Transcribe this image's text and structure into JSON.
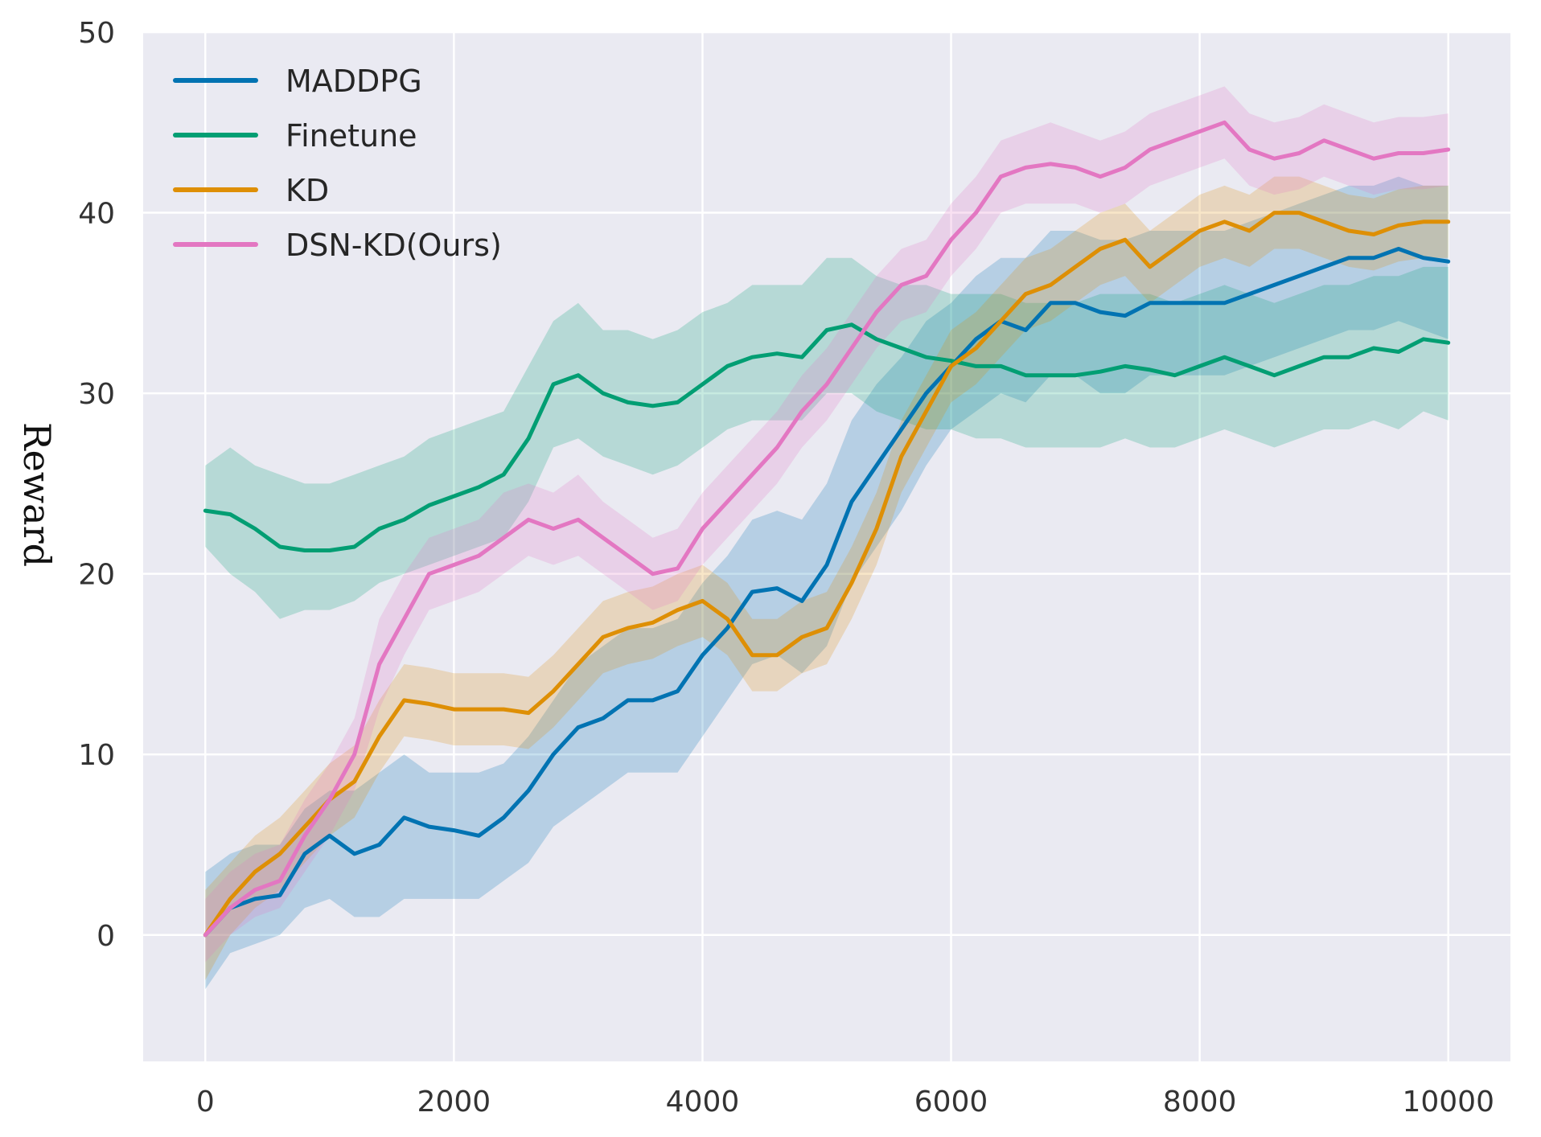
{
  "chart_data": {
    "type": "line",
    "title": "",
    "xlabel": "",
    "ylabel": "Reward",
    "xlim": [
      -500,
      10500
    ],
    "ylim": [
      -7,
      50
    ],
    "xticks": [
      0,
      2000,
      4000,
      6000,
      8000,
      10000
    ],
    "yticks": [
      0,
      10,
      20,
      30,
      40,
      50
    ],
    "grid": true,
    "legend_position": "top-left",
    "colors": {
      "plot_background": "#eaeaf2",
      "grid": "#ffffff"
    },
    "series": [
      {
        "name": "MADDPG",
        "color": "#0173b2",
        "x": [
          0,
          200,
          400,
          600,
          800,
          1000,
          1200,
          1400,
          1600,
          1800,
          2000,
          2200,
          2400,
          2600,
          2800,
          3000,
          3200,
          3400,
          3600,
          3800,
          4000,
          4200,
          4400,
          4600,
          4800,
          5000,
          5200,
          5400,
          5600,
          5800,
          6000,
          6200,
          6400,
          6600,
          6800,
          7000,
          7200,
          7400,
          7600,
          7800,
          8000,
          8200,
          8400,
          8600,
          8800,
          9000,
          9200,
          9400,
          9600,
          9800,
          10000
        ],
        "values": [
          0,
          1.5,
          2,
          2.2,
          4.5,
          5.5,
          4.5,
          5,
          6.5,
          6,
          5.8,
          5.5,
          6.5,
          8,
          10,
          11.5,
          12,
          13,
          13,
          13.5,
          15.5,
          17,
          19,
          19.2,
          18.5,
          20.5,
          24,
          26,
          28,
          30,
          31.5,
          33,
          34,
          33.5,
          35,
          35,
          34.5,
          34.3,
          35,
          35,
          35,
          35,
          35.5,
          36,
          36.5,
          37,
          37.5,
          37.5,
          38,
          37.5,
          37.3
        ],
        "band": [
          [
            -3,
            3.5
          ],
          [
            -1,
            4.5
          ],
          [
            -0.5,
            5
          ],
          [
            0,
            5
          ],
          [
            1.5,
            7
          ],
          [
            2,
            8
          ],
          [
            1,
            8
          ],
          [
            1,
            9
          ],
          [
            2,
            10
          ],
          [
            2,
            9
          ],
          [
            2,
            9
          ],
          [
            2,
            9
          ],
          [
            3,
            9.5
          ],
          [
            4,
            11
          ],
          [
            6,
            13
          ],
          [
            7,
            15
          ],
          [
            8,
            16
          ],
          [
            9,
            17
          ],
          [
            9,
            17
          ],
          [
            9,
            17.5
          ],
          [
            11,
            19.5
          ],
          [
            13,
            21
          ],
          [
            15,
            23
          ],
          [
            15.5,
            23.5
          ],
          [
            14.5,
            23
          ],
          [
            16,
            25
          ],
          [
            19.5,
            28.5
          ],
          [
            21.5,
            30.5
          ],
          [
            23.5,
            32
          ],
          [
            26,
            34
          ],
          [
            28,
            35
          ],
          [
            29,
            36.5
          ],
          [
            30,
            37.5
          ],
          [
            29.5,
            37.5
          ],
          [
            31,
            39
          ],
          [
            31,
            39
          ],
          [
            30,
            38.5
          ],
          [
            30,
            38.5
          ],
          [
            31,
            39
          ],
          [
            31,
            39
          ],
          [
            31,
            39
          ],
          [
            31,
            39
          ],
          [
            31.5,
            39.5
          ],
          [
            32,
            40
          ],
          [
            32.5,
            40.5
          ],
          [
            33,
            41
          ],
          [
            33.5,
            41.5
          ],
          [
            33.5,
            41.5
          ],
          [
            34,
            42
          ],
          [
            33.5,
            41.5
          ],
          [
            33,
            41.5
          ]
        ]
      },
      {
        "name": "Finetune",
        "color": "#029e73",
        "x": [
          0,
          200,
          400,
          600,
          800,
          1000,
          1200,
          1400,
          1600,
          1800,
          2000,
          2200,
          2400,
          2600,
          2800,
          3000,
          3200,
          3400,
          3600,
          3800,
          4000,
          4200,
          4400,
          4600,
          4800,
          5000,
          5200,
          5400,
          5600,
          5800,
          6000,
          6200,
          6400,
          6600,
          6800,
          7000,
          7200,
          7400,
          7600,
          7800,
          8000,
          8200,
          8400,
          8600,
          8800,
          9000,
          9200,
          9400,
          9600,
          9800,
          10000
        ],
        "values": [
          23.5,
          23.3,
          22.5,
          21.5,
          21.3,
          21.3,
          21.5,
          22.5,
          23,
          23.8,
          24.3,
          24.8,
          25.5,
          27.5,
          30.5,
          31,
          30,
          29.5,
          29.3,
          29.5,
          30.5,
          31.5,
          32,
          32.2,
          32,
          33.5,
          33.8,
          33,
          32.5,
          32,
          31.8,
          31.5,
          31.5,
          31,
          31,
          31,
          31.2,
          31.5,
          31.3,
          31,
          31.5,
          32,
          31.5,
          31,
          31.5,
          32,
          32,
          32.5,
          32.3,
          33,
          32.8
        ],
        "band": [
          [
            21.5,
            26
          ],
          [
            20,
            27
          ],
          [
            19,
            26
          ],
          [
            17.5,
            25.5
          ],
          [
            18,
            25
          ],
          [
            18,
            25
          ],
          [
            18.5,
            25.5
          ],
          [
            19.5,
            26
          ],
          [
            20,
            26.5
          ],
          [
            20.5,
            27.5
          ],
          [
            21,
            28
          ],
          [
            21.5,
            28.5
          ],
          [
            22,
            29
          ],
          [
            24,
            31.5
          ],
          [
            27,
            34
          ],
          [
            27.5,
            35
          ],
          [
            26.5,
            33.5
          ],
          [
            26,
            33.5
          ],
          [
            25.5,
            33
          ],
          [
            26,
            33.5
          ],
          [
            27,
            34.5
          ],
          [
            28,
            35
          ],
          [
            28.5,
            36
          ],
          [
            28.5,
            36
          ],
          [
            28.5,
            36
          ],
          [
            30,
            37.5
          ],
          [
            30,
            37.5
          ],
          [
            29,
            36.5
          ],
          [
            28.5,
            36
          ],
          [
            28,
            36
          ],
          [
            28,
            35.5
          ],
          [
            27.5,
            35.5
          ],
          [
            27.5,
            35.5
          ],
          [
            27,
            35
          ],
          [
            27,
            35
          ],
          [
            27,
            35
          ],
          [
            27,
            35.5
          ],
          [
            27.5,
            35.5
          ],
          [
            27,
            35.5
          ],
          [
            27,
            35
          ],
          [
            27.5,
            35.5
          ],
          [
            28,
            36
          ],
          [
            27.5,
            35.5
          ],
          [
            27,
            35
          ],
          [
            27.5,
            35.5
          ],
          [
            28,
            36
          ],
          [
            28,
            36
          ],
          [
            28.5,
            36.5
          ],
          [
            28,
            36.5
          ],
          [
            29,
            37
          ],
          [
            28.5,
            37
          ]
        ]
      },
      {
        "name": "KD",
        "color": "#de8f05",
        "x": [
          0,
          200,
          400,
          600,
          800,
          1000,
          1200,
          1400,
          1600,
          1800,
          2000,
          2200,
          2400,
          2600,
          2800,
          3000,
          3200,
          3400,
          3600,
          3800,
          4000,
          4200,
          4400,
          4600,
          4800,
          5000,
          5200,
          5400,
          5600,
          5800,
          6000,
          6200,
          6400,
          6600,
          6800,
          7000,
          7200,
          7400,
          7600,
          7800,
          8000,
          8200,
          8400,
          8600,
          8800,
          9000,
          9200,
          9400,
          9600,
          9800,
          10000
        ],
        "values": [
          0,
          2,
          3.5,
          4.5,
          6,
          7.5,
          8.5,
          11,
          13,
          12.8,
          12.5,
          12.5,
          12.5,
          12.3,
          13.5,
          15,
          16.5,
          17,
          17.3,
          18,
          18.5,
          17.5,
          15.5,
          15.5,
          16.5,
          17,
          19.5,
          22.5,
          26.5,
          29,
          31.5,
          32.5,
          34,
          35.5,
          36,
          37,
          38,
          38.5,
          37,
          38,
          39,
          39.5,
          39,
          40,
          40,
          39.5,
          39,
          38.8,
          39.3,
          39.5,
          39.5
        ],
        "band": [
          [
            -2.5,
            2.5
          ],
          [
            0,
            4
          ],
          [
            1.5,
            5.5
          ],
          [
            2.5,
            6.5
          ],
          [
            4,
            8
          ],
          [
            5.5,
            9.5
          ],
          [
            6.5,
            10.5
          ],
          [
            9,
            13
          ],
          [
            11,
            15
          ],
          [
            10.8,
            14.8
          ],
          [
            10.5,
            14.5
          ],
          [
            10.5,
            14.5
          ],
          [
            10.5,
            14.5
          ],
          [
            10.3,
            14.3
          ],
          [
            11.5,
            15.5
          ],
          [
            13,
            17
          ],
          [
            14.5,
            18.5
          ],
          [
            15,
            19
          ],
          [
            15.3,
            19.3
          ],
          [
            16,
            20
          ],
          [
            16.5,
            20.5
          ],
          [
            15.5,
            19.5
          ],
          [
            13.5,
            17.5
          ],
          [
            13.5,
            17.5
          ],
          [
            14.5,
            18.5
          ],
          [
            15,
            19
          ],
          [
            17.5,
            21.5
          ],
          [
            20.5,
            24.5
          ],
          [
            24.5,
            28.5
          ],
          [
            27,
            31
          ],
          [
            29.5,
            33.5
          ],
          [
            30.5,
            34.5
          ],
          [
            32,
            36
          ],
          [
            33.5,
            37.5
          ],
          [
            34,
            38
          ],
          [
            35,
            39
          ],
          [
            36,
            40
          ],
          [
            36.5,
            40.5
          ],
          [
            35,
            39
          ],
          [
            36,
            40
          ],
          [
            37,
            41
          ],
          [
            37.5,
            41.5
          ],
          [
            37,
            41
          ],
          [
            38,
            42
          ],
          [
            38,
            42
          ],
          [
            37.5,
            41.5
          ],
          [
            37,
            41
          ],
          [
            36.8,
            40.8
          ],
          [
            37.3,
            41.3
          ],
          [
            37.5,
            41.5
          ],
          [
            37.5,
            41.5
          ]
        ]
      },
      {
        "name": "DSN-KD(Ours)",
        "color": "#e377c2",
        "x": [
          0,
          200,
          400,
          600,
          800,
          1000,
          1200,
          1400,
          1600,
          1800,
          2000,
          2200,
          2400,
          2600,
          2800,
          3000,
          3200,
          3400,
          3600,
          3800,
          4000,
          4200,
          4400,
          4600,
          4800,
          5000,
          5200,
          5400,
          5600,
          5800,
          6000,
          6200,
          6400,
          6600,
          6800,
          7000,
          7200,
          7400,
          7600,
          7800,
          8000,
          8200,
          8400,
          8600,
          8800,
          9000,
          9200,
          9400,
          9600,
          9800,
          10000
        ],
        "values": [
          0,
          1.5,
          2.5,
          3,
          5.5,
          7.5,
          10,
          15,
          17.5,
          20,
          20.5,
          21,
          22,
          23,
          22.5,
          23,
          22,
          21,
          20,
          20.3,
          22.5,
          24,
          25.5,
          27,
          29,
          30.5,
          32.5,
          34.5,
          36,
          36.5,
          38.5,
          40,
          42,
          42.5,
          42.7,
          42.5,
          42,
          42.5,
          43.5,
          44,
          44.5,
          45,
          43.5,
          43,
          43.3,
          44,
          43.5,
          43,
          43.3,
          43.3,
          43.5
        ],
        "band": [
          [
            -1.5,
            2
          ],
          [
            0,
            3.5
          ],
          [
            1,
            4.5
          ],
          [
            1.5,
            5
          ],
          [
            3.5,
            7.5
          ],
          [
            5.5,
            9.5
          ],
          [
            8,
            12
          ],
          [
            12.5,
            17.5
          ],
          [
            15.5,
            20
          ],
          [
            18,
            22
          ],
          [
            18.5,
            22.5
          ],
          [
            19,
            23
          ],
          [
            20,
            24.5
          ],
          [
            21,
            25
          ],
          [
            20.5,
            24.5
          ],
          [
            21,
            25.5
          ],
          [
            20,
            24
          ],
          [
            19,
            23
          ],
          [
            18,
            22
          ],
          [
            18.5,
            22.5
          ],
          [
            20.5,
            24.5
          ],
          [
            22,
            26
          ],
          [
            23.5,
            27.5
          ],
          [
            25,
            29
          ],
          [
            27,
            31
          ],
          [
            28.5,
            32.5
          ],
          [
            30.5,
            34.5
          ],
          [
            32.5,
            36.5
          ],
          [
            34,
            38
          ],
          [
            34.5,
            38.5
          ],
          [
            36.5,
            40.5
          ],
          [
            38,
            42
          ],
          [
            40,
            44
          ],
          [
            40.5,
            44.5
          ],
          [
            40.5,
            45
          ],
          [
            40.5,
            44.5
          ],
          [
            40,
            44
          ],
          [
            40.5,
            44.5
          ],
          [
            41.5,
            45.5
          ],
          [
            42,
            46
          ],
          [
            42.5,
            46.5
          ],
          [
            43,
            47
          ],
          [
            41.5,
            45.5
          ],
          [
            41,
            45
          ],
          [
            41.3,
            45.3
          ],
          [
            42,
            46
          ],
          [
            41.5,
            45.5
          ],
          [
            41,
            45
          ],
          [
            41.3,
            45.3
          ],
          [
            41.3,
            45.3
          ],
          [
            41.5,
            45.5
          ]
        ]
      }
    ]
  }
}
